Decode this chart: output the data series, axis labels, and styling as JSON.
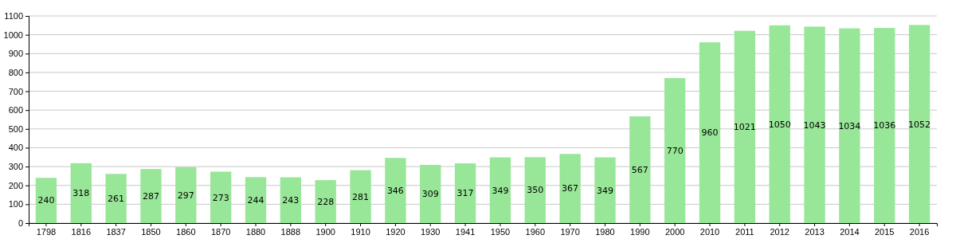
{
  "chart_data": {
    "type": "bar",
    "categories": [
      "1798",
      "1816",
      "1837",
      "1850",
      "1860",
      "1870",
      "1880",
      "1888",
      "1900",
      "1910",
      "1920",
      "1930",
      "1941",
      "1950",
      "1960",
      "1970",
      "1980",
      "1990",
      "2000",
      "2010",
      "2011",
      "2012",
      "2013",
      "2014",
      "2015",
      "2016"
    ],
    "values": [
      240,
      318,
      261,
      287,
      297,
      273,
      244,
      243,
      228,
      281,
      346,
      309,
      317,
      349,
      350,
      367,
      349,
      567,
      770,
      960,
      1021,
      1050,
      1043,
      1034,
      1036,
      1052
    ],
    "color": "#98e698",
    "ylim": [
      0,
      1100
    ],
    "yticks": [
      0,
      100,
      200,
      300,
      400,
      500,
      600,
      700,
      800,
      900,
      1000,
      1100
    ],
    "grid": "y",
    "data_labels": true
  }
}
